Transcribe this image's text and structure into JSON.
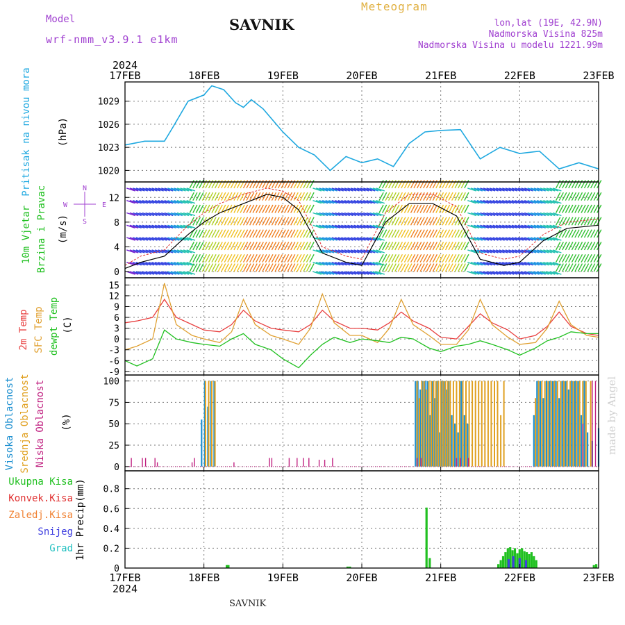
{
  "header": {
    "model_label": "Model",
    "model_name": "wrf-nmm_v3.9.1 e1km",
    "station": "SAVNIK",
    "title": "Meteogram",
    "location": "lon,lat (19E, 42.9N)",
    "elevation": "Nadmorska Visina 825m",
    "model_elevation": "Nadmorska Visina u modelu 1221.99m"
  },
  "footer": {
    "station": "SAVNIK",
    "credit": "made by Angel"
  },
  "time_axis": {
    "year": "2024",
    "labels": [
      "17FEB",
      "18FEB",
      "19FEB",
      "20FEB",
      "21FEB",
      "22FEB",
      "23FEB"
    ]
  },
  "colors": {
    "pressure": "#1ea8e0",
    "wind_speed": "#000000",
    "gust": "#e03030",
    "t2m": "#e84040",
    "tsfc": "#e0a030",
    "dewpt": "#20c020",
    "high_cloud": "#1e90d0",
    "mid_cloud": "#e0a020",
    "low_cloud": "#c02080",
    "total_precip": "#20c020",
    "convective": "#e03030",
    "freezing": "#f08030",
    "snow": "#4040e0",
    "graupel": "#20c0c0"
  },
  "chart_data": [
    {
      "type": "line",
      "panel": "pressure",
      "ylabel_title": "Pritisak na nivou mora",
      "ylabel_unit": "(hPa)",
      "yticks": [
        1020,
        1023,
        1026,
        1029
      ],
      "ylim": [
        1018.5,
        1031.5
      ],
      "x_day": [
        0,
        0.25,
        0.5,
        0.6,
        0.8,
        1.0,
        1.1,
        1.25,
        1.4,
        1.5,
        1.6,
        1.75,
        2.0,
        2.2,
        2.4,
        2.6,
        2.8,
        3.0,
        3.2,
        3.4,
        3.6,
        3.8,
        4.0,
        4.25,
        4.5,
        4.75,
        5.0,
        5.25,
        5.5,
        5.75,
        6.0
      ],
      "series": [
        {
          "values": [
            1023.3,
            1023.8,
            1023.8,
            1025.5,
            1029.0,
            1029.8,
            1031.0,
            1030.5,
            1028.8,
            1028.2,
            1029.2,
            1028.0,
            1025.0,
            1023.0,
            1022.0,
            1020.0,
            1021.8,
            1021.0,
            1021.5,
            1020.5,
            1023.5,
            1025.0,
            1025.2,
            1025.3,
            1021.5,
            1023.0,
            1022.2,
            1022.5,
            1020.2,
            1021.0,
            1020.2
          ]
        }
      ]
    },
    {
      "type": "barbs",
      "panel": "wind",
      "ylabel_title_1": "10m Vjetar",
      "ylabel_title_2": "Brzina i Pravac",
      "ylabel_unit": "(m/s)",
      "compass": {
        "n": "N",
        "s": "S",
        "e": "E",
        "w": "W"
      },
      "yticks": [
        0,
        4,
        8,
        12
      ],
      "ylim": [
        -1,
        14.5
      ],
      "x_day": [
        0,
        0.2,
        0.5,
        0.8,
        1.0,
        1.2,
        1.5,
        1.8,
        2.0,
        2.2,
        2.5,
        2.8,
        3.0,
        3.3,
        3.6,
        3.9,
        4.2,
        4.5,
        4.8,
        5.0,
        5.3,
        5.6,
        6.0
      ],
      "series": [
        {
          "values": [
            0.5,
            1.5,
            2.5,
            6.0,
            8.0,
            9.5,
            11.0,
            12.5,
            12.0,
            10.0,
            3.0,
            1.5,
            1.0,
            8.0,
            11.0,
            11.0,
            9.0,
            2.0,
            1.0,
            1.5,
            5.0,
            7.0,
            7.5
          ]
        },
        {
          "values": [
            1.0,
            2.5,
            3.5,
            7.5,
            9.5,
            11.0,
            12.5,
            13.5,
            13.0,
            11.5,
            4.0,
            2.5,
            2.0,
            9.5,
            12.5,
            12.5,
            10.5,
            3.0,
            2.0,
            2.5,
            6.0,
            8.0,
            8.5
          ]
        }
      ]
    },
    {
      "type": "line",
      "panel": "temperature",
      "ylabel_t2m": "2m Temp",
      "ylabel_tsfc": "SFC Temp",
      "ylabel_dewpt": "dewpt Temp",
      "ylabel_unit": "(C)",
      "yticks": [
        -9,
        -6,
        -3,
        0,
        3,
        6,
        9,
        12,
        15
      ],
      "ylim": [
        -10,
        17
      ],
      "x_day": [
        0,
        0.15,
        0.35,
        0.5,
        0.65,
        0.85,
        1.0,
        1.2,
        1.35,
        1.5,
        1.65,
        1.85,
        2.0,
        2.2,
        2.35,
        2.5,
        2.65,
        2.85,
        3.0,
        3.2,
        3.35,
        3.5,
        3.65,
        3.85,
        4.0,
        4.2,
        4.35,
        4.5,
        4.65,
        4.85,
        5.0,
        5.2,
        5.35,
        5.5,
        5.65,
        5.85,
        6.0
      ],
      "series": [
        {
          "values": [
            4.5,
            5.0,
            6.0,
            11.0,
            6.0,
            4.0,
            2.5,
            2.0,
            4.0,
            8.0,
            5.0,
            3.0,
            2.5,
            2.0,
            4.0,
            8.0,
            5.0,
            3.0,
            3.0,
            2.5,
            4.5,
            7.5,
            5.0,
            3.0,
            0.5,
            0.0,
            3.5,
            7.0,
            4.5,
            2.5,
            0.0,
            1.0,
            3.5,
            7.5,
            3.5,
            1.5,
            1.0
          ]
        },
        {
          "values": [
            -3.0,
            -2.0,
            0.0,
            15.5,
            4.0,
            1.0,
            0.0,
            -1.0,
            2.0,
            11.0,
            4.0,
            1.0,
            0.0,
            -1.5,
            3.0,
            12.5,
            4.5,
            1.0,
            1.0,
            -1.0,
            3.0,
            11.0,
            4.0,
            1.0,
            -1.5,
            -1.5,
            2.5,
            11.0,
            4.0,
            0.5,
            -1.5,
            -1.0,
            3.0,
            10.5,
            4.0,
            1.0,
            0.5
          ]
        },
        {
          "values": [
            -6.0,
            -7.5,
            -5.5,
            2.5,
            0.0,
            -1.0,
            -1.5,
            -2.0,
            0.0,
            1.5,
            -1.5,
            -3.0,
            -5.5,
            -8.0,
            -4.5,
            -1.5,
            0.5,
            -1.0,
            0.0,
            -0.5,
            -1.0,
            0.5,
            0.0,
            -2.5,
            -3.5,
            -2.0,
            -1.5,
            -0.5,
            -1.5,
            -3.0,
            -4.5,
            -2.5,
            -0.5,
            0.5,
            2.0,
            1.5,
            1.5
          ]
        }
      ]
    },
    {
      "type": "bar",
      "panel": "clouds",
      "ylabel_high": "Visoka Oblacnost",
      "ylabel_mid": "Srednja Oblacnost",
      "ylabel_low": "Niska Oblacnost",
      "ylabel_unit": "(%)",
      "yticks": [
        0,
        25,
        50,
        75,
        100
      ],
      "ylim": [
        -5,
        107
      ],
      "series": [
        {
          "x_day": [
            0.97,
            1.01,
            1.05,
            1.09,
            1.13,
            3.68,
            3.71,
            3.74,
            3.77,
            3.8,
            3.83,
            3.86,
            3.89,
            3.92,
            3.95,
            3.98,
            4.01,
            4.04,
            4.07,
            4.1,
            4.14,
            4.18,
            4.22,
            4.26,
            4.3,
            4.34,
            5.18,
            5.22,
            5.26,
            5.3,
            5.34,
            5.38,
            5.42,
            5.46,
            5.5,
            5.54,
            5.58,
            5.62,
            5.66,
            5.7,
            5.74,
            5.78,
            5.82,
            5.86,
            5.92,
            6.0
          ],
          "values": [
            55,
            100,
            70,
            100,
            100,
            100,
            100,
            90,
            100,
            100,
            100,
            60,
            100,
            80,
            100,
            40,
            100,
            100,
            90,
            100,
            60,
            50,
            40,
            100,
            60,
            50,
            60,
            100,
            100,
            80,
            100,
            100,
            100,
            100,
            80,
            100,
            100,
            90,
            100,
            100,
            100,
            60,
            100,
            40,
            30,
            45
          ]
        },
        {
          "x_day": [
            1.02,
            1.06,
            1.1,
            1.14,
            3.7,
            3.73,
            3.76,
            3.79,
            3.82,
            3.85,
            3.88,
            3.91,
            3.94,
            3.97,
            4.0,
            4.03,
            4.06,
            4.09,
            4.12,
            4.16,
            4.2,
            4.24,
            4.28,
            4.32,
            4.36,
            4.4,
            4.44,
            4.48,
            4.52,
            4.56,
            4.6,
            4.64,
            4.68,
            4.72,
            4.76,
            4.8,
            5.2,
            5.24,
            5.28,
            5.32,
            5.36,
            5.4,
            5.44,
            5.48,
            5.52,
            5.56,
            5.6,
            5.64,
            5.68,
            5.72,
            5.76,
            5.8,
            5.84,
            5.9
          ],
          "values": [
            100,
            100,
            100,
            100,
            100,
            80,
            100,
            100,
            90,
            100,
            100,
            100,
            100,
            100,
            100,
            100,
            100,
            100,
            100,
            100,
            100,
            100,
            100,
            100,
            100,
            100,
            100,
            100,
            100,
            100,
            100,
            100,
            100,
            100,
            60,
            100,
            80,
            100,
            100,
            100,
            100,
            100,
            100,
            100,
            100,
            100,
            100,
            100,
            100,
            100,
            100,
            100,
            100,
            100
          ]
        },
        {
          "x_day": [
            0.08,
            0.22,
            0.26,
            0.38,
            0.41,
            0.85,
            0.88,
            1.38,
            1.83,
            1.86,
            2.08,
            2.18,
            2.26,
            2.33,
            2.46,
            2.53,
            2.63,
            3.7,
            3.75,
            4.2,
            4.25,
            4.35,
            5.8,
            5.92,
            5.96
          ],
          "values": [
            10,
            10,
            10,
            10,
            5,
            5,
            10,
            5,
            10,
            10,
            10,
            10,
            10,
            10,
            8,
            8,
            10,
            10,
            10,
            10,
            10,
            10,
            50,
            100,
            100
          ]
        }
      ]
    },
    {
      "type": "bar",
      "panel": "precip",
      "legend": [
        "Ukupna Kisa",
        "Konvek.Kisa",
        "Zaledj.Kisa",
        "Snijeg",
        "Grad"
      ],
      "ylabel_title": "1hr Precip",
      "ylabel_unit": "(mm)",
      "yticks": [
        0,
        0.2,
        0.4,
        0.6,
        0.8
      ],
      "ylim": [
        0,
        0.98
      ],
      "series": [
        {
          "name": "Ukupna Kisa",
          "x_day": [
            1.29,
            1.31,
            2.82,
            2.85,
            3.82,
            3.86,
            4.73,
            4.76,
            4.79,
            4.82,
            4.85,
            4.88,
            4.91,
            4.94,
            4.97,
            5.0,
            5.03,
            5.06,
            5.09,
            5.12,
            5.15,
            5.18,
            5.21,
            5.94,
            5.97
          ],
          "values": [
            0.03,
            0.03,
            0.015,
            0.015,
            0.61,
            0.1,
            0.04,
            0.08,
            0.12,
            0.16,
            0.2,
            0.21,
            0.18,
            0.2,
            0.15,
            0.19,
            0.2,
            0.17,
            0.16,
            0.14,
            0.16,
            0.12,
            0.08,
            0.03,
            0.04
          ]
        },
        {
          "name": "Snijeg",
          "x_day": [
            4.86,
            4.92,
            5.0,
            5.08
          ],
          "values": [
            0.09,
            0.12,
            0.1,
            0.08
          ]
        }
      ]
    }
  ]
}
